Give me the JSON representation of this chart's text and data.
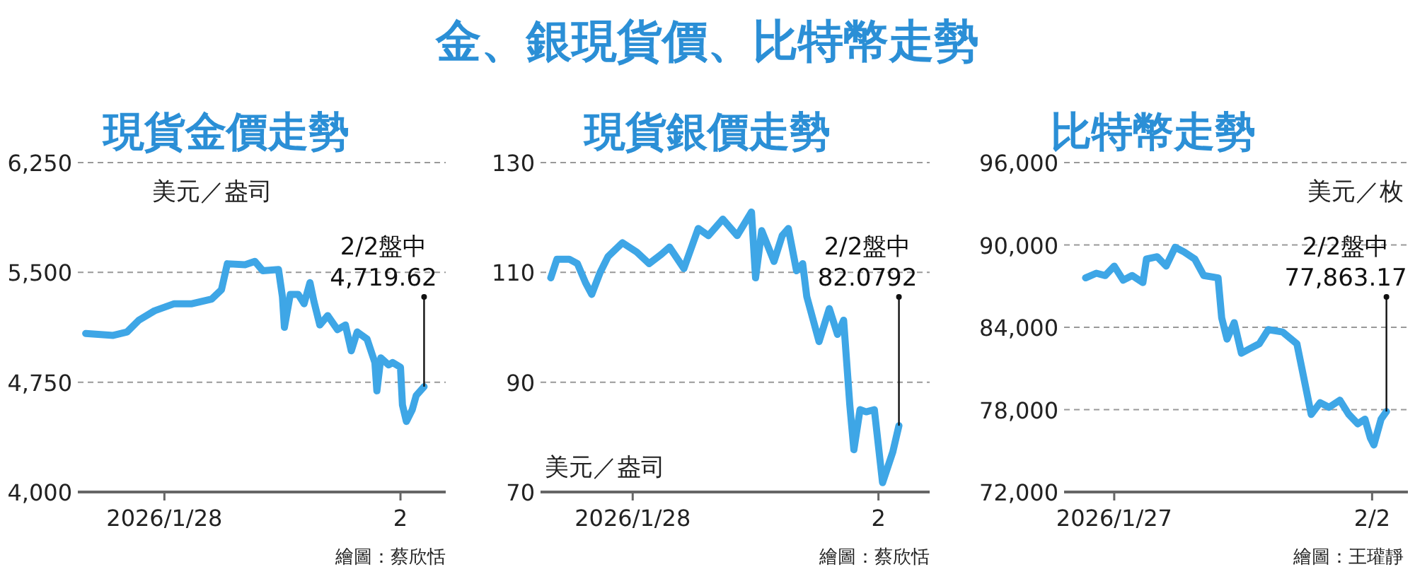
{
  "chart_data": [
    {
      "type": "other",
      "title": "金、銀現貨價、比特幣走勢"
    },
    {
      "type": "line",
      "title": "現貨金價走勢",
      "x": [
        "2026-01-26T08:00",
        "2026-01-26T22:00",
        "2026-01-27T05:00",
        "2026-01-27T11:00",
        "2026-01-27T19:00",
        "2026-01-28T05:00",
        "2026-01-28T14:00",
        "2026-01-29T00:00",
        "2026-01-29T05:00",
        "2026-01-29T08:00",
        "2026-01-29T17:00",
        "2026-01-29T22:00",
        "2026-01-30T02:00",
        "2026-01-30T10:00",
        "2026-01-30T12:00",
        "2026-01-30T13:00",
        "2026-01-30T16:00",
        "2026-01-30T20:00",
        "2026-01-30T23:00",
        "2026-01-31T02:00",
        "2026-01-31T04:00",
        "2026-01-31T07:00",
        "2026-01-31T11:00",
        "2026-01-31T16:00",
        "2026-01-31T20:00",
        "2026-01-31T23:00",
        "2026-02-01T02:00",
        "2026-02-01T07:00",
        "2026-02-01T11:00",
        "2026-02-01T12:00",
        "2026-02-01T14:00",
        "2026-02-01T18:00",
        "2026-02-01T20:00",
        "2026-02-02T00:00",
        "2026-02-02T01:00",
        "2026-02-02T03:00",
        "2026-02-02T06:00",
        "2026-02-02T08:00",
        "2026-02-02T12:00"
      ],
      "series": [
        {
          "color": "#3ea6e6",
          "values": [
            5083,
            5070,
            5093,
            5173,
            5238,
            5286,
            5286,
            5318,
            5382,
            5559,
            5552,
            5575,
            5511,
            5520,
            5334,
            5125,
            5350,
            5350,
            5286,
            5430,
            5302,
            5141,
            5205,
            5109,
            5141,
            4964,
            5093,
            5045,
            4884,
            4691,
            4916,
            4868,
            4884,
            4852,
            4595,
            4482,
            4563,
            4659,
            4719.62
          ]
        }
      ],
      "xlim": [
        "2026-01-26T04:00",
        "2026-02-02T23:00"
      ],
      "xticks": [
        {
          "value": "2026-01-28",
          "label": "2026/1/28"
        },
        {
          "value": "2026-02-02",
          "label": "2"
        }
      ],
      "ylim": [
        4000,
        6250
      ],
      "yticks": [
        {
          "value": 4000,
          "label": "4,000"
        },
        {
          "value": 4750,
          "label": "4,750"
        },
        {
          "value": 5500,
          "label": "5,500"
        },
        {
          "value": 6250,
          "label": "6,250"
        }
      ],
      "grid": "y",
      "annotations": [
        "美元／盎司",
        {
          "text": "2/2盤中\n4,719.62",
          "x": "2026-02-02T12:00",
          "y": 4719.62
        },
        "繪圖：蔡欣恬"
      ]
    },
    {
      "type": "line",
      "title": "現貨銀價走勢",
      "x": [
        "2026-01-26T08:00",
        "2026-01-26T11:00",
        "2026-01-26T17:00",
        "2026-01-26T21:00",
        "2026-01-27T01:00",
        "2026-01-27T04:00",
        "2026-01-27T08:00",
        "2026-01-27T12:00",
        "2026-01-27T19:00",
        "2026-01-28T02:00",
        "2026-01-28T08:00",
        "2026-01-28T14:00",
        "2026-01-28T18:00",
        "2026-01-29T01:00",
        "2026-01-29T08:00",
        "2026-01-29T13:00",
        "2026-01-29T20:00",
        "2026-01-30T03:00",
        "2026-01-30T10:00",
        "2026-01-30T12:00",
        "2026-01-30T15:00",
        "2026-01-30T21:00",
        "2026-01-31T01:00",
        "2026-01-31T04:00",
        "2026-01-31T08:00",
        "2026-01-31T11:00",
        "2026-01-31T13:00",
        "2026-01-31T19:00",
        "2026-02-01T00:00",
        "2026-02-01T04:00",
        "2026-02-01T07:00",
        "2026-02-01T10:00",
        "2026-02-01T12:00",
        "2026-02-01T15:00",
        "2026-02-01T18:00",
        "2026-02-01T22:00",
        "2026-02-02T02:00",
        "2026-02-02T07:00",
        "2026-02-02T10:00"
      ],
      "series": [
        {
          "color": "#3ea6e6",
          "values": [
            109.0,
            112.4,
            112.4,
            111.6,
            108.1,
            106.0,
            109.9,
            112.9,
            115.4,
            113.7,
            111.6,
            113.3,
            114.6,
            110.7,
            118.0,
            116.7,
            119.7,
            116.7,
            121.0,
            109.0,
            117.6,
            112.0,
            116.7,
            118.0,
            110.3,
            111.6,
            105.6,
            97.4,
            103.4,
            98.7,
            101.3,
            85.9,
            77.7,
            85.0,
            84.6,
            85.0,
            71.7,
            77.3,
            82.0792
          ]
        }
      ],
      "xlim": [
        "2026-01-26T03:00",
        "2026-02-03T01:00"
      ],
      "xticks": [
        {
          "value": "2026-01-28",
          "label": "2026/1/28"
        },
        {
          "value": "2026-02-02",
          "label": "2"
        }
      ],
      "ylim": [
        70,
        130
      ],
      "yticks": [
        70,
        90,
        110,
        130
      ],
      "grid": "y",
      "annotations": [
        "美元／盎司",
        {
          "text": "2/2盤中\n82.0792",
          "x": "2026-02-02T10:00",
          "y": 82.0792
        },
        "繪圖：蔡欣恬"
      ]
    },
    {
      "type": "line",
      "title": "比特幣走勢",
      "x": [
        "2026-01-26T08:00",
        "2026-01-26T14:00",
        "2026-01-26T19:00",
        "2026-01-27T00:00",
        "2026-01-27T05:00",
        "2026-01-27T10:00",
        "2026-01-27T16:00",
        "2026-01-27T18:00",
        "2026-01-28T00:00",
        "2026-01-28T05:00",
        "2026-01-28T10:00",
        "2026-01-28T15:00",
        "2026-01-28T21:00",
        "2026-01-29T02:00",
        "2026-01-29T10:00",
        "2026-01-29T12:00",
        "2026-01-29T15:00",
        "2026-01-29T19:00",
        "2026-01-29T23:00",
        "2026-01-30T04:00",
        "2026-01-30T09:00",
        "2026-01-30T14:00",
        "2026-01-30T22:00",
        "2026-01-31T06:00",
        "2026-01-31T14:00",
        "2026-01-31T19:00",
        "2026-02-01T00:00",
        "2026-02-01T06:00",
        "2026-02-01T11:00",
        "2026-02-01T16:00",
        "2026-02-01T20:00",
        "2026-02-01T23:00",
        "2026-02-02T01:00",
        "2026-02-02T05:00",
        "2026-02-02T08:00"
      ],
      "series": [
        {
          "color": "#3ea6e6",
          "values": [
            87600,
            87940,
            87770,
            88460,
            87430,
            87770,
            87260,
            88970,
            89140,
            88460,
            89830,
            89490,
            88970,
            87770,
            87600,
            84690,
            83140,
            84340,
            82110,
            82460,
            82800,
            83830,
            83660,
            82800,
            77650,
            78510,
            78170,
            78690,
            77650,
            76970,
            77310,
            75940,
            75430,
            77310,
            77863.17
          ]
        }
      ],
      "xlim": [
        "2026-01-25T20:00",
        "2026-02-02T20:00"
      ],
      "xticks": [
        {
          "value": "2026-01-27",
          "label": "2026/1/27"
        },
        {
          "value": "2026-02-02",
          "label": "2/2"
        }
      ],
      "ylim": [
        72000,
        96000
      ],
      "yticks": [
        {
          "value": 72000,
          "label": "72,000"
        },
        {
          "value": 78000,
          "label": "78,000"
        },
        {
          "value": 84000,
          "label": "84,000"
        },
        {
          "value": 90000,
          "label": "90,000"
        },
        {
          "value": 96000,
          "label": "96,000"
        }
      ],
      "grid": "y",
      "annotations": [
        "美元／枚",
        {
          "text": "2/2盤中\n77,863.17",
          "x": "2026-02-02T08:00",
          "y": 77863.17
        },
        "繪圖：王瓘靜"
      ]
    }
  ]
}
